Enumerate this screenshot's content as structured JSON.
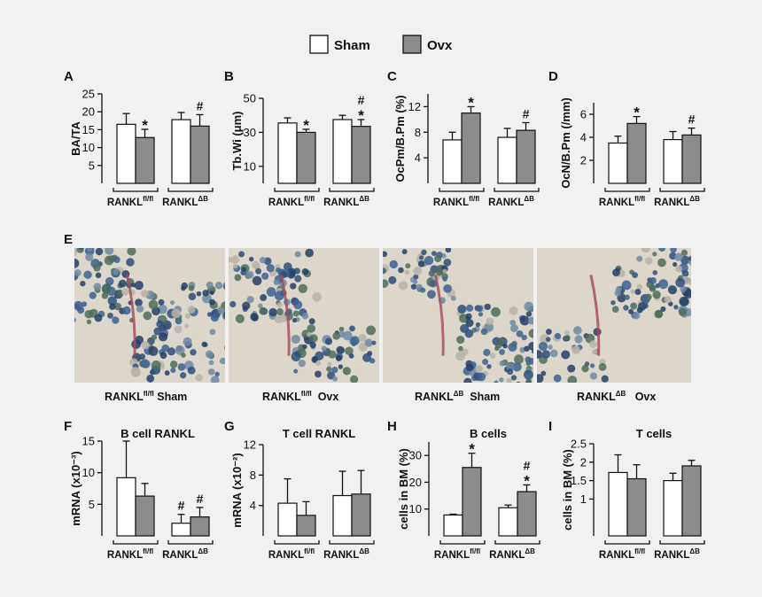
{
  "legend": {
    "sham_label": "Sham",
    "ovx_label": "Ovx",
    "sham_color": "#ffffff",
    "ovx_color": "#8c8c8c"
  },
  "group_labels": {
    "flox_base": "RANKL",
    "flox_sup": "fl/fl",
    "del_base": "RANKL",
    "del_sup": "ΔB"
  },
  "chart_data": [
    {
      "id": "A",
      "type": "bar",
      "panel_label": "A",
      "title": "",
      "ylabel": "BA/TA",
      "ylim": [
        0,
        25
      ],
      "yticks": [
        5,
        10,
        15,
        20,
        25
      ],
      "yticklabels": [
        "5",
        "10",
        "15",
        "20",
        "25"
      ],
      "categories": [
        "RANKL fl/fl",
        "RANKL ΔB"
      ],
      "series": [
        {
          "name": "Sham",
          "values": [
            16.5,
            17.8
          ],
          "errors": [
            3.0,
            2.0
          ]
        },
        {
          "name": "Ovx",
          "values": [
            12.8,
            16.0
          ],
          "errors": [
            2.3,
            3.2
          ]
        }
      ],
      "annotations": [
        {
          "series": "Ovx",
          "category": 0,
          "text": "*"
        },
        {
          "series": "Ovx",
          "category": 1,
          "text": "#"
        }
      ]
    },
    {
      "id": "B",
      "type": "bar",
      "panel_label": "B",
      "title": "",
      "ylabel": "Tb.Wi (μm)",
      "ylim": [
        0,
        50
      ],
      "yticks": [
        10,
        30,
        50
      ],
      "yticklabels": [
        "10",
        "30",
        "50"
      ],
      "categories": [
        "RANKL fl/fl",
        "RANKL ΔB"
      ],
      "series": [
        {
          "name": "Sham",
          "values": [
            35.5,
            37.5
          ],
          "errors": [
            3.0,
            2.5
          ]
        },
        {
          "name": "Ovx",
          "values": [
            30.0,
            33.5
          ],
          "errors": [
            1.8,
            4.0
          ]
        }
      ],
      "annotations": [
        {
          "series": "Ovx",
          "category": 0,
          "text": "*"
        },
        {
          "series": "Ovx",
          "category": 1,
          "text": "#"
        },
        {
          "series": "Ovx",
          "category": 1,
          "text": "*"
        }
      ]
    },
    {
      "id": "C",
      "type": "bar",
      "panel_label": "C",
      "title": "",
      "ylabel": "OcPm/B.Pm (%)",
      "ylim": [
        0,
        14
      ],
      "yticks": [
        4,
        8,
        12
      ],
      "yticklabels": [
        "4",
        "8",
        "12"
      ],
      "categories": [
        "RANKL fl/fl",
        "RANKL ΔB"
      ],
      "series": [
        {
          "name": "Sham",
          "values": [
            6.8,
            7.2
          ],
          "errors": [
            1.2,
            1.4
          ]
        },
        {
          "name": "Ovx",
          "values": [
            11.0,
            8.3
          ],
          "errors": [
            1.0,
            1.2
          ]
        }
      ],
      "annotations": [
        {
          "series": "Ovx",
          "category": 0,
          "text": "*"
        },
        {
          "series": "Ovx",
          "category": 1,
          "text": "#"
        }
      ]
    },
    {
      "id": "D",
      "type": "bar",
      "panel_label": "D",
      "title": "",
      "ylabel": "OcN/B.Pm (/mm)",
      "ylim": [
        0,
        7
      ],
      "yticks": [
        2,
        4,
        6
      ],
      "yticklabels": [
        "2",
        "4",
        "6"
      ],
      "categories": [
        "RANKL fl/fl",
        "RANKL ΔB"
      ],
      "series": [
        {
          "name": "Sham",
          "values": [
            3.5,
            3.8
          ],
          "errors": [
            0.6,
            0.7
          ]
        },
        {
          "name": "Ovx",
          "values": [
            5.2,
            4.2
          ],
          "errors": [
            0.6,
            0.6
          ]
        }
      ],
      "annotations": [
        {
          "series": "Ovx",
          "category": 0,
          "text": "*"
        },
        {
          "series": "Ovx",
          "category": 1,
          "text": "#"
        }
      ]
    },
    {
      "id": "F",
      "type": "bar",
      "panel_label": "F",
      "title": "B cell RANKL",
      "ylabel": "mRNA (x10⁻³)",
      "ylim": [
        0,
        15
      ],
      "yticks": [
        5,
        10,
        15
      ],
      "yticklabels": [
        "5",
        "10",
        "15"
      ],
      "categories": [
        "RANKL fl/fl",
        "RANKL ΔB"
      ],
      "series": [
        {
          "name": "Sham",
          "values": [
            9.2,
            2.0
          ],
          "errors": [
            5.8,
            1.4
          ]
        },
        {
          "name": "Ovx",
          "values": [
            6.3,
            3.0
          ],
          "errors": [
            2.0,
            1.5
          ]
        }
      ],
      "annotations": [
        {
          "series": "Sham",
          "category": 1,
          "text": "#"
        },
        {
          "series": "Ovx",
          "category": 1,
          "text": "#"
        }
      ]
    },
    {
      "id": "G",
      "type": "bar",
      "panel_label": "G",
      "title": "T cell RANKL",
      "ylabel": "mRNA (x10⁻²)",
      "ylim": [
        0,
        12
      ],
      "yticks": [
        4,
        8,
        12
      ],
      "yticklabels": [
        "4",
        "8",
        "12"
      ],
      "categories": [
        "RANKL fl/fl",
        "RANKL ΔB"
      ],
      "series": [
        {
          "name": "Sham",
          "values": [
            4.3,
            5.3
          ],
          "errors": [
            3.2,
            3.2
          ]
        },
        {
          "name": "Ovx",
          "values": [
            2.7,
            5.5
          ],
          "errors": [
            1.8,
            3.1
          ]
        }
      ],
      "annotations": []
    },
    {
      "id": "H",
      "type": "bar",
      "panel_label": "H",
      "title": "B cells",
      "ylabel": "cells in BM (%)",
      "ylim": [
        0,
        35
      ],
      "yticks": [
        10,
        20,
        30
      ],
      "yticklabels": [
        "10",
        "20",
        "30"
      ],
      "categories": [
        "RANKL fl/fl",
        "RANKL ΔB"
      ],
      "series": [
        {
          "name": "Sham",
          "values": [
            7.8,
            10.5
          ],
          "errors": [
            0.3,
            1.0
          ]
        },
        {
          "name": "Ovx",
          "values": [
            25.5,
            16.5
          ],
          "errors": [
            5.3,
            2.5
          ]
        }
      ],
      "annotations": [
        {
          "series": "Ovx",
          "category": 0,
          "text": "*"
        },
        {
          "series": "Ovx",
          "category": 1,
          "text": "#"
        },
        {
          "series": "Ovx",
          "category": 1,
          "text": "*"
        }
      ]
    },
    {
      "id": "I",
      "type": "bar",
      "panel_label": "I",
      "title": "T cells",
      "ylabel": "cells in BM (%)",
      "ylim": [
        0,
        2.5
      ],
      "yticks": [
        1,
        1.5,
        2,
        2.5
      ],
      "yticklabels": [
        "1",
        "1.5",
        "2",
        "2.5"
      ],
      "categories": [
        "RANKL fl/fl",
        "RANKL ΔB"
      ],
      "series": [
        {
          "name": "Sham",
          "values": [
            1.72,
            1.5
          ],
          "errors": [
            0.48,
            0.2
          ]
        },
        {
          "name": "Ovx",
          "values": [
            1.55,
            1.9
          ],
          "errors": [
            0.38,
            0.15
          ]
        }
      ],
      "annotations": []
    }
  ],
  "panel_e": {
    "label": "E",
    "images": [
      {
        "base": "RANKL",
        "sup": "fl/fl",
        "cond": "Sham"
      },
      {
        "base": "RANKL",
        "sup": "fl/fl",
        "cond": "Ovx"
      },
      {
        "base": "RANKL",
        "sup": "ΔB",
        "cond": "Sham"
      },
      {
        "base": "RANKL",
        "sup": "ΔB",
        "cond": "Ovx"
      }
    ]
  }
}
